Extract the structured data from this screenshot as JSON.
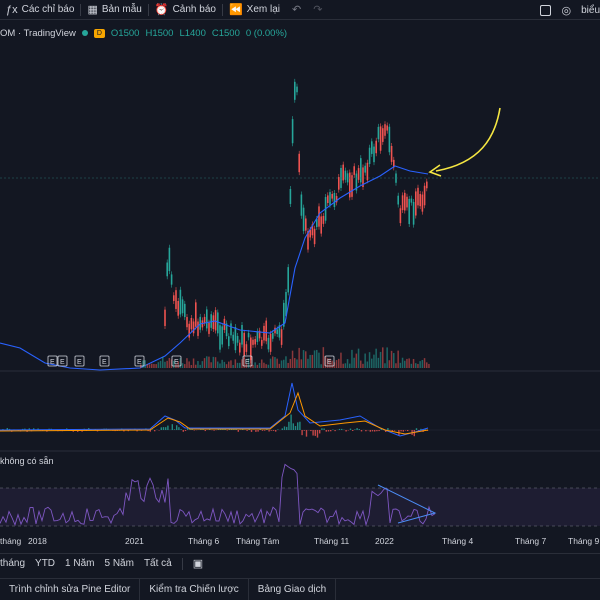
{
  "toolbar": {
    "indicators_label": "Các chỉ báo",
    "templates_label": "Bản mẫu",
    "alerts_label": "Cảnh báo",
    "replay_label": "Xem lại",
    "right_text": "biểu"
  },
  "legend": {
    "symbol": "OM · TradingView",
    "badge": "D",
    "open": "O1500",
    "high": "H1500",
    "low": "L1400",
    "close": "C1500",
    "change": "0 (0.00%)"
  },
  "rsi_label": "không có sẵn",
  "time_axis": {
    "labels": [
      "tháng",
      "2018",
      "2021",
      "Tháng 6",
      "Tháng Tám",
      "Tháng 11",
      "2022",
      "Tháng 4",
      "Tháng 7",
      "Tháng 9"
    ]
  },
  "range_bar": {
    "items": [
      "tháng",
      "YTD",
      "1 Năm",
      "5 Năm",
      "Tất cả"
    ]
  },
  "bottom_bar": {
    "tabs": [
      "Trình chỉnh sửa Pine Editor",
      "Kiểm tra Chiến lược",
      "Bảng Giao dịch"
    ]
  },
  "events": {
    "marker": "E"
  },
  "colors": {
    "background": "#131722",
    "up": "#26a69a",
    "down": "#ef5350",
    "ma": "#2962ff",
    "rsi": "#7e57c2",
    "annotation": "#f5e642"
  }
}
